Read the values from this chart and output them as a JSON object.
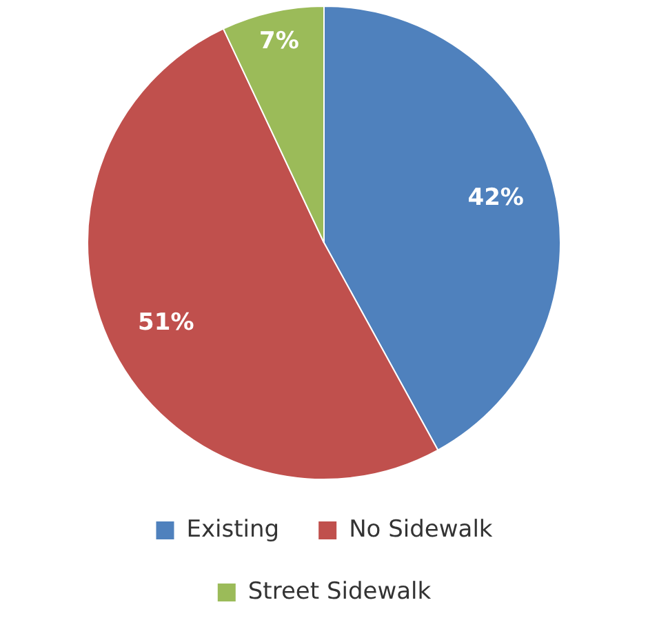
{
  "chart_data": {
    "type": "pie",
    "categories": [
      "Existing",
      "No Sidewalk",
      "Street Sidewalk"
    ],
    "values": [
      42,
      51,
      7
    ],
    "colors": [
      "#4f81bd",
      "#c0504d",
      "#9bbb59"
    ],
    "value_labels": [
      "42%",
      "51%",
      "7%"
    ],
    "legend": "bottom"
  }
}
